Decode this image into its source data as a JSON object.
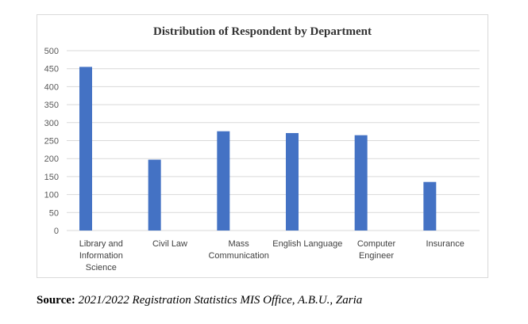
{
  "chart_data": {
    "type": "bar",
    "title": "Distribution of Respondent by Department",
    "categories": [
      "Library and Information Science",
      "Civil Law",
      "Mass Communication",
      "English Language",
      "Computer Engineer",
      "Insurance"
    ],
    "category_lines": [
      [
        "Library and",
        "Information",
        "Science"
      ],
      [
        "Civil Law"
      ],
      [
        "Mass",
        "Communication"
      ],
      [
        "English Language"
      ],
      [
        "Computer",
        "Engineer"
      ],
      [
        "Insurance"
      ]
    ],
    "values": [
      455,
      197,
      276,
      271,
      265,
      135
    ],
    "ylim": [
      0,
      500
    ],
    "yticks": [
      0,
      50,
      100,
      150,
      200,
      250,
      300,
      350,
      400,
      450,
      500
    ],
    "xlabel": "",
    "ylabel": "",
    "grid": true,
    "legend": "none",
    "bar_color": "#4472C4"
  },
  "source": {
    "label": "Source:",
    "text": "2021/2022 Registration Statistics MIS Office, A.B.U., Zaria"
  }
}
